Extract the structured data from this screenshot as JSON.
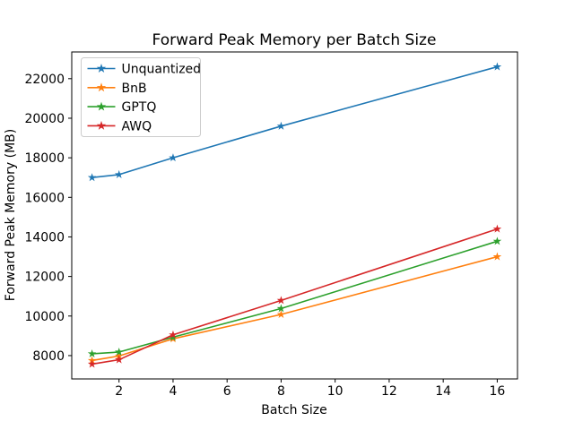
{
  "chart_data": {
    "type": "line",
    "title": "Forward Peak Memory per Batch Size",
    "xlabel": "Batch Size",
    "ylabel": "Forward Peak Memory (MB)",
    "x": [
      1,
      2,
      4,
      8,
      16
    ],
    "series": [
      {
        "name": "Unquantized",
        "color": "#1f77b4",
        "values": [
          17000,
          17150,
          18000,
          19600,
          22600
        ]
      },
      {
        "name": "BnB",
        "color": "#ff7f0e",
        "values": [
          7750,
          7980,
          8850,
          10080,
          13000
        ]
      },
      {
        "name": "GPTQ",
        "color": "#2ca02c",
        "values": [
          8090,
          8180,
          8930,
          10380,
          13780
        ]
      },
      {
        "name": "AWQ",
        "color": "#d62728",
        "values": [
          7570,
          7790,
          9050,
          10790,
          14400
        ]
      }
    ],
    "xticks": [
      2,
      4,
      6,
      8,
      10,
      12,
      14,
      16
    ],
    "yticks": [
      8000,
      10000,
      12000,
      14000,
      16000,
      18000,
      20000,
      22000
    ],
    "xlim": [
      0.25,
      16.75
    ],
    "ylim": [
      6820,
      23350
    ],
    "grid": false,
    "marker": "star",
    "legend_position": "upper-left",
    "colors": {
      "spine": "#000000",
      "background": "#ffffff",
      "legend_border": "#cccccc"
    }
  }
}
